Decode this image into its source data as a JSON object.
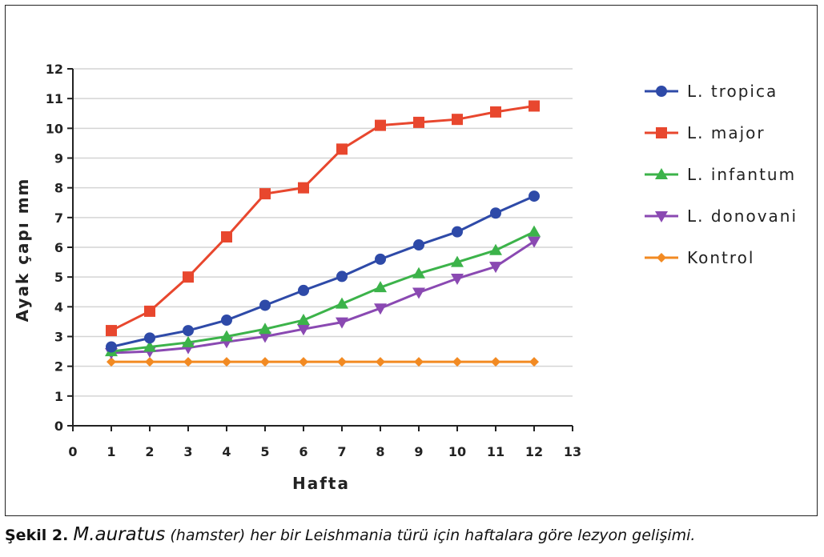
{
  "chart_data": {
    "type": "line",
    "xlabel": "Hafta",
    "ylabel": "Ayak çapı mm",
    "xlim": [
      0,
      13
    ],
    "ylim": [
      0,
      12
    ],
    "xticks": [
      0,
      1,
      2,
      3,
      4,
      5,
      6,
      7,
      8,
      9,
      10,
      11,
      12,
      13
    ],
    "yticks": [
      0,
      1,
      2,
      3,
      4,
      5,
      6,
      7,
      8,
      9,
      10,
      11,
      12
    ],
    "grid": "horizontal",
    "legend_position": "right",
    "x": [
      1,
      2,
      3,
      4,
      5,
      6,
      7,
      8,
      9,
      10,
      11,
      12
    ],
    "series": [
      {
        "name": "L. tropica",
        "color": "#2e4aa8",
        "marker": "circle",
        "values": [
          2.65,
          2.95,
          3.2,
          3.55,
          4.05,
          4.55,
          5.02,
          5.6,
          6.08,
          6.52,
          7.15,
          7.72
        ]
      },
      {
        "name": "L. major",
        "color": "#e8472e",
        "marker": "square",
        "values": [
          3.2,
          3.85,
          5.0,
          6.35,
          7.8,
          8.0,
          9.3,
          10.1,
          10.2,
          10.3,
          10.55,
          10.75
        ]
      },
      {
        "name": "L. infantum",
        "color": "#3cb34a",
        "marker": "triangle-up",
        "values": [
          2.5,
          2.65,
          2.8,
          3.0,
          3.25,
          3.55,
          4.1,
          4.65,
          5.12,
          5.5,
          5.9,
          6.52
        ]
      },
      {
        "name": "L. donovani",
        "color": "#8a49b2",
        "marker": "triangle-down",
        "values": [
          2.45,
          2.5,
          2.62,
          2.82,
          3.0,
          3.25,
          3.48,
          3.95,
          4.48,
          4.95,
          5.35,
          6.2
        ]
      },
      {
        "name": "Kontrol",
        "color": "#f28a22",
        "marker": "diamond",
        "values": [
          2.15,
          2.15,
          2.15,
          2.15,
          2.15,
          2.15,
          2.15,
          2.15,
          2.15,
          2.15,
          2.15,
          2.15
        ]
      }
    ]
  },
  "caption": {
    "label": "Şekil 2.",
    "species": "M.auratus",
    "text": "(hamster) her bir Leishmania türü için haftalara göre lezyon gelişimi."
  }
}
